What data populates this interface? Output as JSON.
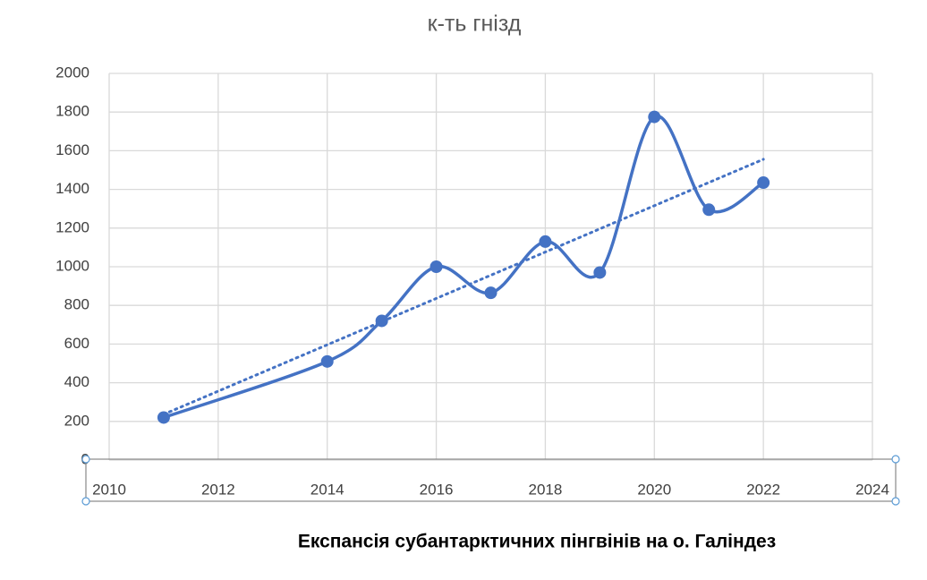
{
  "chart_data": {
    "type": "line",
    "title": "к-ть гнізд",
    "subtitle": "Експансія субантарктичних пінгвінів на о. Галіндез",
    "x": [
      2011,
      2014,
      2015,
      2016,
      2017,
      2018,
      2019,
      2020,
      2021,
      2022
    ],
    "series": [
      {
        "name": "к-ть гнізд",
        "color": "#4472c4",
        "values": [
          220,
          510,
          720,
          1000,
          865,
          1130,
          970,
          1775,
          1295,
          1435
        ]
      }
    ],
    "trendline": "linear",
    "smooth": true,
    "xlim": [
      2010,
      2024
    ],
    "xticks": [
      2010,
      2012,
      2014,
      2016,
      2018,
      2020,
      2022,
      2024
    ],
    "ylim": [
      0,
      2000
    ],
    "yticks": [
      0,
      200,
      400,
      600,
      800,
      1000,
      1200,
      1400,
      1600,
      1800,
      2000
    ],
    "grid": true
  }
}
